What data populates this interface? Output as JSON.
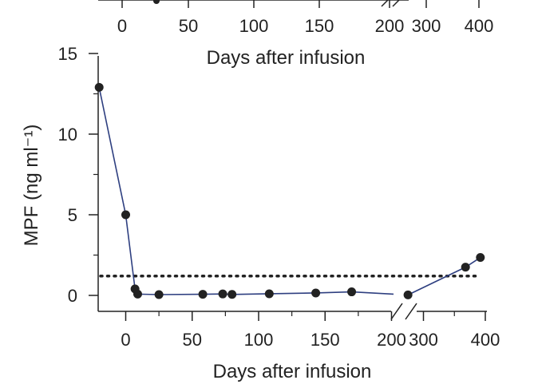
{
  "chart_data": {
    "type": "line",
    "top_axis": {
      "xlabel": "Days after infusion",
      "tick_labels": [
        "0",
        "50",
        "100",
        "150",
        "200",
        "300",
        "400"
      ]
    },
    "xlabel": "Days after infusion",
    "ylabel": "MPF (ng ml⁻¹)",
    "x_ticks": [
      0,
      50,
      100,
      150,
      200,
      300,
      400
    ],
    "x_tick_labels": [
      "0",
      "50",
      "100",
      "150",
      "200",
      "300",
      "400"
    ],
    "y_ticks": [
      0,
      5,
      10,
      15
    ],
    "y_tick_labels": [
      "0",
      "5",
      "10",
      "15"
    ],
    "ylim": [
      -1,
      15
    ],
    "x_segments": [
      [
        -20,
        200
      ],
      [
        260,
        400
      ]
    ],
    "axis_break": "between 200 and 300",
    "threshold": 1.2,
    "threshold_style": "dotted",
    "colors": {
      "line": "#2e3f80",
      "marker": "#222222",
      "axis": "#222222"
    },
    "series": [
      {
        "x": [
          -20,
          0,
          7,
          9,
          25,
          58,
          73,
          80,
          108,
          143,
          170,
          275,
          368,
          392
        ],
        "y": [
          12.9,
          5.0,
          0.4,
          0.08,
          0.05,
          0.07,
          0.09,
          0.06,
          0.1,
          0.15,
          0.22,
          0.03,
          1.75,
          2.35
        ]
      }
    ]
  }
}
